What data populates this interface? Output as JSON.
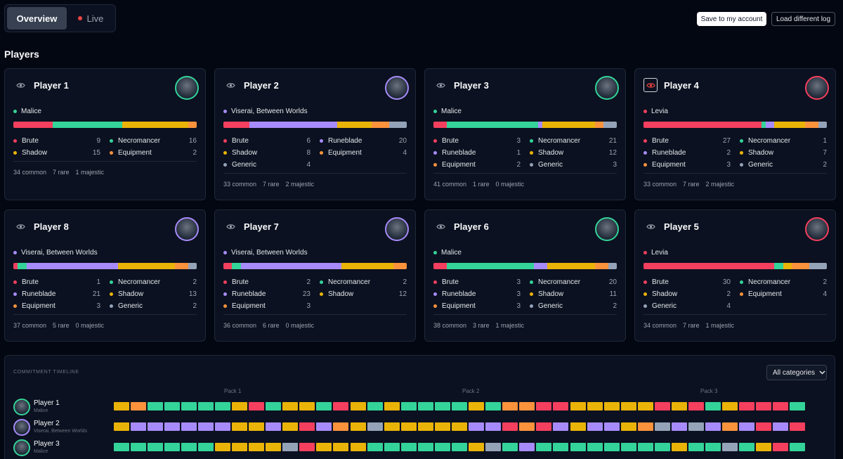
{
  "colors": {
    "Brute": "#f43f5e",
    "Necromancer": "#34d399",
    "Shadow": "#eab308",
    "Equipment": "#fb923c",
    "Runeblade": "#a78bfa",
    "Generic": "#94a3b8"
  },
  "tabs": {
    "overview": "Overview",
    "live": "Live"
  },
  "buttons": {
    "save": "Save to my account",
    "load": "Load different log"
  },
  "section_title": "Players",
  "players": [
    {
      "name": "Player 1",
      "leader": "Malice",
      "leader_cat": "Necromancer",
      "avatar_color": "#34d399",
      "alert": false,
      "bar": [
        [
          "Brute",
          9
        ],
        [
          "Necromancer",
          16
        ],
        [
          "Shadow",
          15
        ],
        [
          "Equipment",
          2
        ]
      ],
      "cats": [
        [
          "Brute",
          "9"
        ],
        [
          "Necromancer",
          "16"
        ],
        [
          "Shadow",
          "15"
        ],
        [
          "Equipment",
          "2"
        ]
      ],
      "common": "34 common",
      "rare": "7 rare",
      "majestic": "1 majestic"
    },
    {
      "name": "Player 2",
      "leader": "Viserai, Between Worlds",
      "leader_cat": "Runeblade",
      "avatar_color": "#a78bfa",
      "alert": false,
      "bar": [
        [
          "Brute",
          6
        ],
        [
          "Runeblade",
          20
        ],
        [
          "Shadow",
          8
        ],
        [
          "Equipment",
          4
        ],
        [
          "Generic",
          4
        ]
      ],
      "cats": [
        [
          "Brute",
          "6"
        ],
        [
          "Runeblade",
          "20"
        ],
        [
          "Shadow",
          "8"
        ],
        [
          "Equipment",
          "4"
        ],
        [
          "Generic",
          "4"
        ]
      ],
      "common": "33 common",
      "rare": "7 rare",
      "majestic": "2 majestic"
    },
    {
      "name": "Player 3",
      "leader": "Malice",
      "leader_cat": "Necromancer",
      "avatar_color": "#34d399",
      "alert": false,
      "bar": [
        [
          "Brute",
          3
        ],
        [
          "Necromancer",
          21
        ],
        [
          "Runeblade",
          1
        ],
        [
          "Shadow",
          12
        ],
        [
          "Equipment",
          2
        ],
        [
          "Generic",
          3
        ]
      ],
      "cats": [
        [
          "Brute",
          "3"
        ],
        [
          "Necromancer",
          "21"
        ],
        [
          "Runeblade",
          "1"
        ],
        [
          "Shadow",
          "12"
        ],
        [
          "Equipment",
          "2"
        ],
        [
          "Generic",
          "3"
        ]
      ],
      "common": "41 common",
      "rare": "1 rare",
      "majestic": "0 majestic"
    },
    {
      "name": "Player 4",
      "leader": "Levia",
      "leader_cat": "Brute",
      "avatar_color": "#f43f5e",
      "alert": true,
      "bar": [
        [
          "Brute",
          27
        ],
        [
          "Necromancer",
          1
        ],
        [
          "Runeblade",
          2
        ],
        [
          "Shadow",
          7
        ],
        [
          "Equipment",
          3
        ],
        [
          "Generic",
          2
        ]
      ],
      "cats": [
        [
          "Brute",
          "27"
        ],
        [
          "Necromancer",
          "1"
        ],
        [
          "Runeblade",
          "2"
        ],
        [
          "Shadow",
          "7"
        ],
        [
          "Equipment",
          "3"
        ],
        [
          "Generic",
          "2"
        ]
      ],
      "common": "33 common",
      "rare": "7 rare",
      "majestic": "2 majestic"
    },
    {
      "name": "Player 8",
      "leader": "Viserai, Between Worlds",
      "leader_cat": "Runeblade",
      "avatar_color": "#a78bfa",
      "alert": false,
      "bar": [
        [
          "Brute",
          1
        ],
        [
          "Necromancer",
          2
        ],
        [
          "Runeblade",
          21
        ],
        [
          "Shadow",
          13
        ],
        [
          "Equipment",
          3
        ],
        [
          "Generic",
          2
        ]
      ],
      "cats": [
        [
          "Brute",
          "1"
        ],
        [
          "Necromancer",
          "2"
        ],
        [
          "Runeblade",
          "21"
        ],
        [
          "Shadow",
          "13"
        ],
        [
          "Equipment",
          "3"
        ],
        [
          "Generic",
          "2"
        ]
      ],
      "common": "37 common",
      "rare": "5 rare",
      "majestic": "0 majestic"
    },
    {
      "name": "Player 7",
      "leader": "Viserai, Between Worlds",
      "leader_cat": "Runeblade",
      "avatar_color": "#a78bfa",
      "alert": false,
      "bar": [
        [
          "Brute",
          2
        ],
        [
          "Necromancer",
          2
        ],
        [
          "Runeblade",
          23
        ],
        [
          "Shadow",
          12
        ],
        [
          "Equipment",
          3
        ]
      ],
      "cats": [
        [
          "Brute",
          "2"
        ],
        [
          "Necromancer",
          "2"
        ],
        [
          "Runeblade",
          "23"
        ],
        [
          "Shadow",
          "12"
        ],
        [
          "Equipment",
          "3"
        ]
      ],
      "common": "36 common",
      "rare": "6 rare",
      "majestic": "0 majestic"
    },
    {
      "name": "Player 6",
      "leader": "Malice",
      "leader_cat": "Necromancer",
      "avatar_color": "#34d399",
      "alert": false,
      "bar": [
        [
          "Brute",
          3
        ],
        [
          "Necromancer",
          20
        ],
        [
          "Runeblade",
          3
        ],
        [
          "Shadow",
          11
        ],
        [
          "Equipment",
          3
        ],
        [
          "Generic",
          2
        ]
      ],
      "cats": [
        [
          "Brute",
          "3"
        ],
        [
          "Necromancer",
          "20"
        ],
        [
          "Runeblade",
          "3"
        ],
        [
          "Shadow",
          "11"
        ],
        [
          "Equipment",
          "3"
        ],
        [
          "Generic",
          "2"
        ]
      ],
      "common": "38 common",
      "rare": "3 rare",
      "majestic": "1 majestic"
    },
    {
      "name": "Player 5",
      "leader": "Levia",
      "leader_cat": "Brute",
      "avatar_color": "#f43f5e",
      "alert": false,
      "bar": [
        [
          "Brute",
          30
        ],
        [
          "Necromancer",
          2
        ],
        [
          "Shadow",
          2
        ],
        [
          "Equipment",
          4
        ],
        [
          "Generic",
          4
        ]
      ],
      "cats": [
        [
          "Brute",
          "30"
        ],
        [
          "Necromancer",
          "2"
        ],
        [
          "Shadow",
          "2"
        ],
        [
          "Equipment",
          "4"
        ],
        [
          "Generic",
          "4"
        ]
      ],
      "common": "34 common",
      "rare": "7 rare",
      "majestic": "1 majestic"
    }
  ],
  "timeline": {
    "title": "COMMITMENT TIMELINE",
    "filter": "All categories",
    "packs": [
      "Pack 1",
      "Pack 2",
      "Pack 3"
    ],
    "rows": [
      {
        "name": "Player 1",
        "sub": "Malice",
        "avatar_color": "#34d399",
        "picks": [
          "Y",
          "O",
          "G",
          "G",
          "G",
          "G",
          "G",
          "Y",
          "R",
          "G",
          "Y",
          "Y",
          "G",
          "R",
          "Y",
          "G",
          "Y",
          "G",
          "G",
          "G",
          "G",
          "Y",
          "G",
          "O",
          "O",
          "R",
          "R",
          "Y",
          "Y",
          "Y",
          "Y",
          "Y",
          "R",
          "Y",
          "R",
          "G",
          "Y",
          "R",
          "R",
          "R",
          "G"
        ]
      },
      {
        "name": "Player 2",
        "sub": "Viserai, Between Worlds",
        "avatar_color": "#a78bfa",
        "picks": [
          "Y",
          "P",
          "P",
          "P",
          "P",
          "P",
          "P",
          "Y",
          "Y",
          "P",
          "Y",
          "R",
          "P",
          "O",
          "Y",
          "S",
          "Y",
          "Y",
          "Y",
          "Y",
          "Y",
          "P",
          "P",
          "R",
          "O",
          "R",
          "P",
          "Y",
          "P",
          "P",
          "Y",
          "O",
          "S",
          "P",
          "S",
          "P",
          "O",
          "P",
          "R",
          "P",
          "R"
        ]
      },
      {
        "name": "Player 3",
        "sub": "Malice",
        "avatar_color": "#34d399",
        "picks": [
          "G",
          "G",
          "G",
          "G",
          "G",
          "G",
          "Y",
          "Y",
          "Y",
          "Y",
          "S",
          "R",
          "Y",
          "Y",
          "Y",
          "G",
          "G",
          "G",
          "G",
          "G",
          "G",
          "Y",
          "S",
          "G",
          "P",
          "G",
          "G",
          "G",
          "G",
          "G",
          "G",
          "G",
          "G",
          "Y",
          "G",
          "G",
          "S",
          "G",
          "Y",
          "R",
          "G"
        ]
      }
    ]
  }
}
